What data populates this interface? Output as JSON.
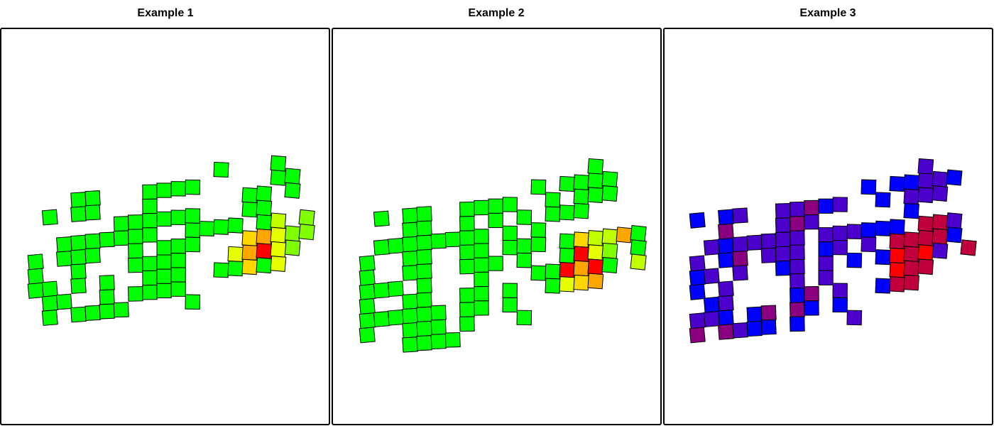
{
  "chart_data": [
    {
      "type": "heatmap",
      "title": "Example 1",
      "palette": {
        "green": "#00ff00",
        "lime": "#80ff00",
        "chartreuse": "#bfff00",
        "yellow": "#e6ff00",
        "gold": "#ffd700",
        "orange": "#ffa500",
        "red": "#ff0000"
      },
      "cells": [
        [
          2,
          2,
          "green"
        ],
        [
          4,
          1,
          "green"
        ],
        [
          5,
          1,
          "green"
        ],
        [
          9,
          1,
          "green"
        ],
        [
          10,
          1,
          "green"
        ],
        [
          11,
          1,
          "green"
        ],
        [
          12,
          1,
          "green"
        ],
        [
          14,
          0,
          "green"
        ],
        [
          16,
          2,
          "green"
        ],
        [
          17,
          2,
          "green"
        ],
        [
          18,
          1,
          "green"
        ],
        [
          18,
          0,
          "green"
        ],
        [
          19,
          1,
          "green"
        ],
        [
          19,
          2,
          "green"
        ],
        [
          4,
          2,
          "green"
        ],
        [
          5,
          2,
          "green"
        ],
        [
          7,
          3,
          "green"
        ],
        [
          8,
          3,
          "green"
        ],
        [
          9,
          2,
          "green"
        ],
        [
          10,
          3,
          "green"
        ],
        [
          13,
          4,
          "green"
        ],
        [
          12,
          4,
          "green"
        ],
        [
          14,
          4,
          "green"
        ],
        [
          15,
          4,
          "green"
        ],
        [
          16,
          3,
          "green"
        ],
        [
          17,
          3,
          "green"
        ],
        [
          3,
          4,
          "green"
        ],
        [
          4,
          4,
          "green"
        ],
        [
          5,
          4,
          "green"
        ],
        [
          6,
          4,
          "green"
        ],
        [
          7,
          4,
          "green"
        ],
        [
          8,
          4,
          "green"
        ],
        [
          9,
          3,
          "green"
        ],
        [
          11,
          3,
          "green"
        ],
        [
          12,
          3,
          "green"
        ],
        [
          17,
          4,
          "green"
        ],
        [
          18,
          4,
          "chartreuse"
        ],
        [
          19,
          5,
          "lime"
        ],
        [
          20,
          4,
          "lime"
        ],
        [
          1,
          5,
          "green"
        ],
        [
          3,
          5,
          "green"
        ],
        [
          4,
          5,
          "green"
        ],
        [
          5,
          5,
          "green"
        ],
        [
          8,
          5,
          "green"
        ],
        [
          9,
          4,
          "green"
        ],
        [
          10,
          5,
          "green"
        ],
        [
          11,
          5,
          "green"
        ],
        [
          12,
          5,
          "green"
        ],
        [
          16,
          5,
          "gold"
        ],
        [
          17,
          5,
          "orange"
        ],
        [
          18,
          5,
          "yellow"
        ],
        [
          19,
          6,
          "lime"
        ],
        [
          20,
          5,
          "lime"
        ],
        [
          1,
          6,
          "green"
        ],
        [
          4,
          6,
          "green"
        ],
        [
          8,
          6,
          "green"
        ],
        [
          9,
          6,
          "green"
        ],
        [
          10,
          6,
          "green"
        ],
        [
          11,
          6,
          "green"
        ],
        [
          15,
          6,
          "yellow"
        ],
        [
          16,
          6,
          "orange"
        ],
        [
          17,
          6,
          "red"
        ],
        [
          18,
          6,
          "yellow"
        ],
        [
          1,
          7,
          "green"
        ],
        [
          2,
          7,
          "green"
        ],
        [
          4,
          7,
          "green"
        ],
        [
          6,
          7,
          "green"
        ],
        [
          9,
          7,
          "green"
        ],
        [
          10,
          7,
          "green"
        ],
        [
          11,
          7,
          "green"
        ],
        [
          14,
          7,
          "green"
        ],
        [
          15,
          7,
          "green"
        ],
        [
          16,
          7,
          "gold"
        ],
        [
          17,
          7,
          "green"
        ],
        [
          18,
          7,
          "yellow"
        ],
        [
          2,
          8,
          "green"
        ],
        [
          3,
          8,
          "green"
        ],
        [
          6,
          8,
          "green"
        ],
        [
          8,
          8,
          "green"
        ],
        [
          9,
          8,
          "green"
        ],
        [
          10,
          8,
          "green"
        ],
        [
          11,
          8,
          "green"
        ],
        [
          2,
          9,
          "green"
        ],
        [
          4,
          9,
          "green"
        ],
        [
          5,
          9,
          "green"
        ],
        [
          6,
          9,
          "green"
        ],
        [
          7,
          9,
          "green"
        ],
        [
          12,
          9,
          "green"
        ]
      ]
    },
    {
      "type": "heatmap",
      "title": "Example 2",
      "palette": {
        "green": "#00ff00",
        "lime": "#80ff00",
        "chartreuse": "#bfff00",
        "yellow": "#e6ff00",
        "gold": "#ffd700",
        "orange": "#ffa500",
        "red": "#ff0000"
      },
      "cells": [
        [
          2,
          2,
          "green"
        ],
        [
          4,
          2,
          "green"
        ],
        [
          5,
          2,
          "green"
        ],
        [
          8,
          2,
          "green"
        ],
        [
          9,
          2,
          "green"
        ],
        [
          10,
          2,
          "green"
        ],
        [
          11,
          2,
          "green"
        ],
        [
          13,
          1,
          "green"
        ],
        [
          15,
          1,
          "green"
        ],
        [
          16,
          1,
          "green"
        ],
        [
          17,
          1,
          "green"
        ],
        [
          18,
          1,
          "green"
        ],
        [
          17,
          0,
          "green"
        ],
        [
          4,
          3,
          "green"
        ],
        [
          5,
          3,
          "green"
        ],
        [
          8,
          3,
          "green"
        ],
        [
          10,
          3,
          "green"
        ],
        [
          12,
          3,
          "green"
        ],
        [
          14,
          2,
          "green"
        ],
        [
          16,
          2,
          "green"
        ],
        [
          17,
          2,
          "green"
        ],
        [
          18,
          2,
          "green"
        ],
        [
          2,
          4,
          "green"
        ],
        [
          3,
          4,
          "green"
        ],
        [
          4,
          4,
          "green"
        ],
        [
          5,
          4,
          "green"
        ],
        [
          6,
          4,
          "green"
        ],
        [
          7,
          4,
          "green"
        ],
        [
          8,
          4,
          "green"
        ],
        [
          9,
          4,
          "green"
        ],
        [
          11,
          4,
          "green"
        ],
        [
          13,
          4,
          "green"
        ],
        [
          14,
          3,
          "green"
        ],
        [
          15,
          3,
          "green"
        ],
        [
          16,
          3,
          "green"
        ],
        [
          1,
          5,
          "green"
        ],
        [
          4,
          5,
          "green"
        ],
        [
          5,
          5,
          "green"
        ],
        [
          8,
          5,
          "green"
        ],
        [
          9,
          5,
          "green"
        ],
        [
          11,
          5,
          "green"
        ],
        [
          12,
          5,
          "green"
        ],
        [
          13,
          5,
          "green"
        ],
        [
          15,
          5,
          "green"
        ],
        [
          16,
          5,
          "gold"
        ],
        [
          17,
          5,
          "chartreuse"
        ],
        [
          18,
          5,
          "chartreuse"
        ],
        [
          19,
          5,
          "orange"
        ],
        [
          20,
          5,
          "green"
        ],
        [
          1,
          6,
          "green"
        ],
        [
          4,
          6,
          "green"
        ],
        [
          5,
          6,
          "green"
        ],
        [
          8,
          6,
          "green"
        ],
        [
          9,
          6,
          "green"
        ],
        [
          10,
          6,
          "green"
        ],
        [
          12,
          6,
          "green"
        ],
        [
          15,
          6,
          "green"
        ],
        [
          16,
          6,
          "red"
        ],
        [
          17,
          6,
          "yellow"
        ],
        [
          18,
          6,
          "lime"
        ],
        [
          20,
          6,
          "green"
        ],
        [
          1,
          7,
          "green"
        ],
        [
          2,
          7,
          "green"
        ],
        [
          3,
          7,
          "green"
        ],
        [
          5,
          7,
          "green"
        ],
        [
          9,
          7,
          "green"
        ],
        [
          13,
          7,
          "green"
        ],
        [
          14,
          7,
          "green"
        ],
        [
          15,
          7,
          "red"
        ],
        [
          16,
          7,
          "orange"
        ],
        [
          17,
          7,
          "red"
        ],
        [
          18,
          7,
          "green"
        ],
        [
          20,
          7,
          "chartreuse"
        ],
        [
          1,
          8,
          "green"
        ],
        [
          4,
          8,
          "green"
        ],
        [
          5,
          8,
          "green"
        ],
        [
          8,
          8,
          "green"
        ],
        [
          9,
          8,
          "green"
        ],
        [
          11,
          8,
          "green"
        ],
        [
          14,
          8,
          "green"
        ],
        [
          15,
          8,
          "yellow"
        ],
        [
          16,
          8,
          "gold"
        ],
        [
          17,
          8,
          "orange"
        ],
        [
          1,
          9,
          "green"
        ],
        [
          2,
          9,
          "green"
        ],
        [
          3,
          9,
          "green"
        ],
        [
          4,
          9,
          "green"
        ],
        [
          5,
          9,
          "green"
        ],
        [
          6,
          9,
          "green"
        ],
        [
          8,
          9,
          "green"
        ],
        [
          9,
          9,
          "green"
        ],
        [
          11,
          9,
          "green"
        ],
        [
          1,
          10,
          "green"
        ],
        [
          4,
          10,
          "green"
        ],
        [
          5,
          10,
          "green"
        ],
        [
          6,
          10,
          "green"
        ],
        [
          8,
          10,
          "green"
        ],
        [
          12,
          10,
          "green"
        ],
        [
          4,
          11,
          "green"
        ],
        [
          5,
          11,
          "green"
        ],
        [
          6,
          11,
          "green"
        ],
        [
          7,
          11,
          "green"
        ]
      ]
    },
    {
      "type": "heatmap",
      "title": "Example 3",
      "palette": {
        "blue": "#0000ff",
        "indigo": "#4b00cc",
        "violet": "#6a00b0",
        "plum": "#8a0080",
        "crimson": "#c0003c",
        "red": "#ff0000"
      },
      "cells": [
        [
          1,
          2,
          "blue"
        ],
        [
          3,
          2,
          "blue"
        ],
        [
          4,
          2,
          "indigo"
        ],
        [
          7,
          2,
          "indigo"
        ],
        [
          8,
          2,
          "indigo"
        ],
        [
          9,
          2,
          "plum"
        ],
        [
          10,
          2,
          "blue"
        ],
        [
          11,
          2,
          "indigo"
        ],
        [
          13,
          1,
          "blue"
        ],
        [
          15,
          1,
          "blue"
        ],
        [
          16,
          1,
          "blue"
        ],
        [
          17,
          1,
          "indigo"
        ],
        [
          18,
          1,
          "indigo"
        ],
        [
          19,
          1,
          "blue"
        ],
        [
          17,
          0,
          "indigo"
        ],
        [
          3,
          3,
          "plum"
        ],
        [
          7,
          3,
          "indigo"
        ],
        [
          8,
          3,
          "plum"
        ],
        [
          9,
          3,
          "indigo"
        ],
        [
          14,
          2,
          "blue"
        ],
        [
          16,
          2,
          "indigo"
        ],
        [
          17,
          2,
          "indigo"
        ],
        [
          18,
          2,
          "indigo"
        ],
        [
          2,
          4,
          "indigo"
        ],
        [
          3,
          4,
          "blue"
        ],
        [
          4,
          4,
          "indigo"
        ],
        [
          5,
          4,
          "indigo"
        ],
        [
          6,
          4,
          "indigo"
        ],
        [
          7,
          4,
          "indigo"
        ],
        [
          8,
          4,
          "indigo"
        ],
        [
          10,
          4,
          "indigo"
        ],
        [
          11,
          4,
          "indigo"
        ],
        [
          12,
          4,
          "indigo"
        ],
        [
          13,
          4,
          "blue"
        ],
        [
          14,
          4,
          "blue"
        ],
        [
          15,
          4,
          "blue"
        ],
        [
          16,
          3,
          "blue"
        ],
        [
          17,
          4,
          "crimson"
        ],
        [
          18,
          4,
          "crimson"
        ],
        [
          19,
          4,
          "indigo"
        ],
        [
          1,
          5,
          "indigo"
        ],
        [
          3,
          5,
          "blue"
        ],
        [
          4,
          5,
          "plum"
        ],
        [
          6,
          5,
          "indigo"
        ],
        [
          7,
          5,
          "indigo"
        ],
        [
          8,
          5,
          "indigo"
        ],
        [
          10,
          5,
          "blue"
        ],
        [
          11,
          5,
          "indigo"
        ],
        [
          13,
          5,
          "indigo"
        ],
        [
          15,
          5,
          "crimson"
        ],
        [
          16,
          5,
          "crimson"
        ],
        [
          17,
          5,
          "crimson"
        ],
        [
          18,
          5,
          "crimson"
        ],
        [
          19,
          5,
          "blue"
        ],
        [
          1,
          6,
          "blue"
        ],
        [
          2,
          6,
          "indigo"
        ],
        [
          4,
          6,
          "indigo"
        ],
        [
          7,
          6,
          "blue"
        ],
        [
          8,
          6,
          "indigo"
        ],
        [
          10,
          6,
          "indigo"
        ],
        [
          12,
          6,
          "blue"
        ],
        [
          14,
          6,
          "blue"
        ],
        [
          15,
          6,
          "red"
        ],
        [
          16,
          6,
          "crimson"
        ],
        [
          17,
          6,
          "red"
        ],
        [
          18,
          6,
          "indigo"
        ],
        [
          20,
          6,
          "crimson"
        ],
        [
          1,
          7,
          "blue"
        ],
        [
          3,
          7,
          "indigo"
        ],
        [
          8,
          7,
          "indigo"
        ],
        [
          10,
          7,
          "indigo"
        ],
        [
          15,
          7,
          "red"
        ],
        [
          16,
          7,
          "crimson"
        ],
        [
          17,
          7,
          "crimson"
        ],
        [
          2,
          8,
          "blue"
        ],
        [
          3,
          8,
          "indigo"
        ],
        [
          8,
          8,
          "blue"
        ],
        [
          9,
          8,
          "plum"
        ],
        [
          11,
          8,
          "indigo"
        ],
        [
          14,
          8,
          "blue"
        ],
        [
          15,
          8,
          "crimson"
        ],
        [
          16,
          8,
          "crimson"
        ],
        [
          1,
          9,
          "indigo"
        ],
        [
          2,
          9,
          "indigo"
        ],
        [
          3,
          9,
          "blue"
        ],
        [
          5,
          9,
          "blue"
        ],
        [
          6,
          9,
          "plum"
        ],
        [
          8,
          9,
          "plum"
        ],
        [
          9,
          9,
          "blue"
        ],
        [
          11,
          9,
          "blue"
        ],
        [
          1,
          10,
          "plum"
        ],
        [
          3,
          10,
          "plum"
        ],
        [
          4,
          10,
          "indigo"
        ],
        [
          5,
          10,
          "blue"
        ],
        [
          6,
          10,
          "blue"
        ],
        [
          8,
          10,
          "blue"
        ],
        [
          12,
          10,
          "indigo"
        ]
      ]
    }
  ]
}
